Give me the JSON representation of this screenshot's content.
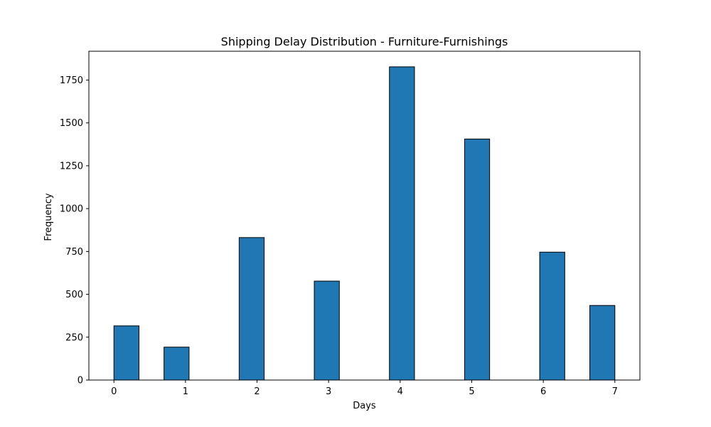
{
  "chart_data": {
    "type": "bar",
    "title": "Shipping Delay Distribution - Furniture-Furnishings",
    "xlabel": "Days",
    "ylabel": "Frequency",
    "bins": [
      {
        "start": 0.0,
        "end": 0.35,
        "value": 316
      },
      {
        "start": 0.7,
        "end": 1.05,
        "value": 192
      },
      {
        "start": 1.75,
        "end": 2.1,
        "value": 831
      },
      {
        "start": 2.8,
        "end": 3.15,
        "value": 577
      },
      {
        "start": 3.85,
        "end": 4.2,
        "value": 1827
      },
      {
        "start": 4.9,
        "end": 5.25,
        "value": 1406
      },
      {
        "start": 5.95,
        "end": 6.3,
        "value": 746
      },
      {
        "start": 6.65,
        "end": 7.0,
        "value": 435
      }
    ],
    "xlim": [
      -0.35,
      7.35
    ],
    "ylim": [
      0,
      1918
    ],
    "xticks": [
      0,
      1,
      2,
      3,
      4,
      5,
      6,
      7
    ],
    "yticks": [
      0,
      250,
      500,
      750,
      1000,
      1250,
      1500,
      1750
    ],
    "grid": false,
    "legend": "none",
    "bar_color": "#1f77b4",
    "edge_color": "#000000"
  }
}
